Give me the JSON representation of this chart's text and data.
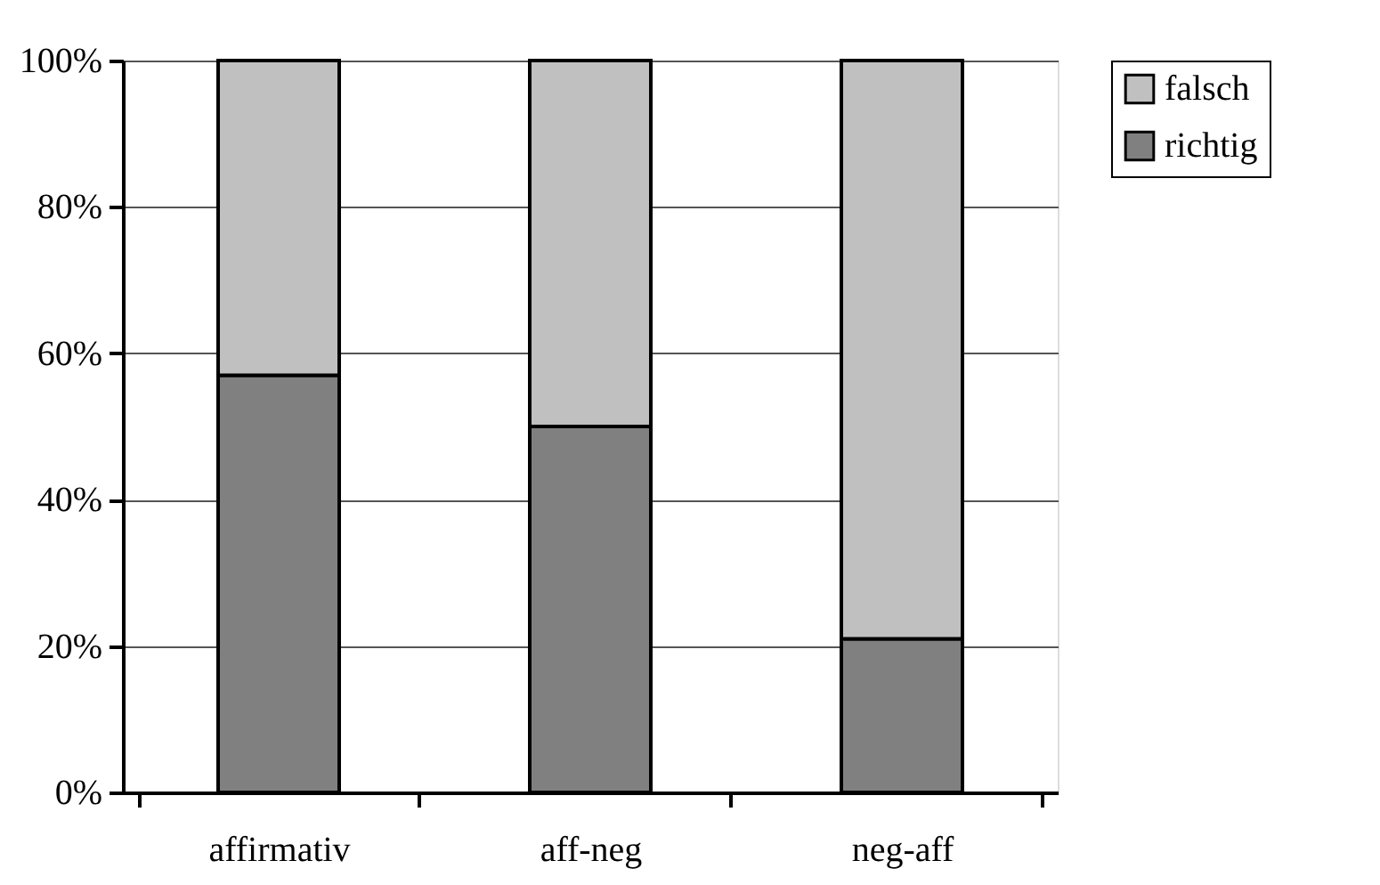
{
  "chart_data": {
    "type": "bar",
    "stacked": true,
    "categories": [
      "affirmativ",
      "aff-neg",
      "neg-aff"
    ],
    "series": [
      {
        "name": "richtig",
        "color": "#808080",
        "values": [
          57,
          50,
          21
        ]
      },
      {
        "name": "falsch",
        "color": "#c0c0c0",
        "values": [
          43,
          50,
          79
        ]
      }
    ],
    "ylim": [
      0,
      100
    ],
    "yticks": [
      {
        "value": 0,
        "label": "0%"
      },
      {
        "value": 20,
        "label": "20%"
      },
      {
        "value": 40,
        "label": "40%"
      },
      {
        "value": 60,
        "label": "60%"
      },
      {
        "value": 80,
        "label": "80%"
      },
      {
        "value": 100,
        "label": "100%"
      }
    ],
    "grid": "y",
    "legend": "right"
  }
}
